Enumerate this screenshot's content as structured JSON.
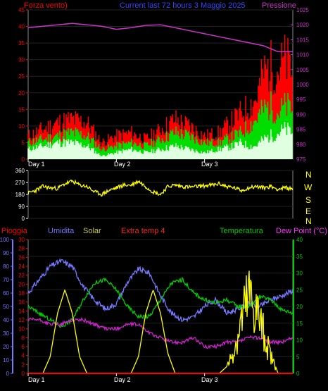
{
  "panels": {
    "top": {
      "label_left": "Forza vento)",
      "label_center": "Current last 72 hours 3 Maggio 2025",
      "label_right": "Pressione"
    },
    "direction": {
      "compass": [
        "N",
        "W",
        "S",
        "E",
        "N"
      ]
    },
    "bottom": {
      "label_pioggia": "Pioggia",
      "label_umidita": "Umidita",
      "label_solar": "Solar",
      "label_extra": "Extra temp 4",
      "label_temp": "Temperatura",
      "label_dew": "Dew Point (°C)"
    }
  },
  "day_labels": [
    "Day 1",
    "Day 2",
    "Day 3"
  ],
  "colors": {
    "wind_gust": "#ff0000",
    "wind_avg": "#00dd00",
    "wind_base": "#e0ffe0",
    "pressure": "#cc33cc",
    "direction": "#ffff00",
    "humidity": "#7777ff",
    "temperature": "#00cc00",
    "solar": "#ffff00",
    "extra_temp": "#cc22cc",
    "rain": "#ff0000",
    "axis_left": "#ff0000",
    "axis_right": "#00cc00"
  },
  "chart_data": [
    {
      "type": "area",
      "name": "wind",
      "x_range": [
        0,
        72
      ],
      "y_left": {
        "label": "Forza vento)",
        "ticks": [
          0,
          5,
          10,
          15,
          20,
          25,
          30,
          35,
          40,
          45
        ],
        "ylim": [
          0,
          45
        ]
      },
      "y_right": {
        "label": "Pressione",
        "ticks": [
          975,
          980,
          985,
          990,
          995,
          1000,
          1005,
          1010,
          1015,
          1020,
          1025
        ],
        "ylim": [
          975,
          1025
        ]
      },
      "series": [
        {
          "name": "gust",
          "x": [
            0,
            4,
            8,
            12,
            16,
            20,
            24,
            28,
            32,
            36,
            40,
            44,
            48,
            52,
            56,
            58,
            60,
            62,
            64,
            66,
            68,
            70,
            72
          ],
          "values": [
            7,
            9,
            11,
            12,
            11,
            5,
            7,
            8,
            6,
            9,
            12,
            10,
            7,
            8,
            12,
            14,
            16,
            18,
            26,
            28,
            27,
            30,
            26
          ]
        },
        {
          "name": "average",
          "x": [
            0,
            4,
            8,
            12,
            16,
            20,
            24,
            28,
            32,
            36,
            40,
            44,
            48,
            52,
            56,
            58,
            60,
            62,
            64,
            66,
            68,
            70,
            72
          ],
          "values": [
            5,
            6,
            7,
            8,
            7,
            3,
            4,
            5,
            4,
            6,
            8,
            7,
            5,
            5,
            7,
            8,
            10,
            12,
            15,
            16,
            14,
            16,
            15
          ]
        },
        {
          "name": "base",
          "x": [
            0,
            4,
            8,
            12,
            16,
            20,
            24,
            28,
            32,
            36,
            40,
            44,
            48,
            52,
            56,
            58,
            60,
            62,
            64,
            66,
            68,
            70,
            72
          ],
          "values": [
            3,
            4,
            5,
            5,
            4,
            1,
            2,
            3,
            2,
            3,
            4,
            3,
            2,
            3,
            4,
            5,
            4,
            4,
            6,
            7,
            8,
            9,
            8
          ]
        },
        {
          "name": "pressure",
          "axis": "right",
          "x": [
            0,
            4,
            8,
            12,
            16,
            20,
            24,
            28,
            32,
            36,
            40,
            44,
            48,
            52,
            56,
            60,
            64,
            68,
            72
          ],
          "values": [
            1019,
            1019.5,
            1020,
            1020.5,
            1020,
            1019.5,
            1018.5,
            1019,
            1019.8,
            1020,
            1019,
            1018,
            1017,
            1016,
            1015,
            1014,
            1013,
            1011,
            1011
          ]
        }
      ]
    },
    {
      "type": "line",
      "name": "wind-direction",
      "x_range": [
        0,
        72
      ],
      "y": {
        "ticks": [
          0,
          90,
          180,
          270,
          360
        ],
        "ylim": [
          0,
          360
        ]
      },
      "series": [
        {
          "name": "direction",
          "x": [
            0,
            2,
            4,
            6,
            8,
            10,
            12,
            14,
            16,
            18,
            20,
            22,
            24,
            26,
            28,
            30,
            32,
            34,
            36,
            38,
            40,
            42,
            44,
            46,
            48,
            50,
            52,
            54,
            56,
            58,
            60,
            62,
            64,
            66,
            68,
            70,
            72
          ],
          "values": [
            190,
            210,
            240,
            230,
            225,
            260,
            280,
            250,
            240,
            200,
            180,
            210,
            230,
            250,
            250,
            280,
            240,
            200,
            180,
            240,
            250,
            240,
            235,
            240,
            245,
            250,
            260,
            240,
            230,
            210,
            230,
            240,
            230,
            240,
            220,
            230,
            220
          ]
        }
      ]
    },
    {
      "type": "line",
      "name": "environment",
      "x_range": [
        0,
        72
      ],
      "y_left_outer": {
        "label": "Umidita",
        "ticks": [
          0,
          10,
          20,
          30,
          40,
          50,
          60,
          70,
          80,
          90,
          100
        ],
        "ylim": [
          0,
          100
        ]
      },
      "y_left_inner": {
        "label": "Pioggia",
        "ticks": [
          0,
          2,
          4,
          6,
          8,
          10,
          12,
          14,
          16,
          18,
          20,
          22,
          24,
          26,
          28,
          30
        ],
        "ylim": [
          0,
          30
        ]
      },
      "y_right": {
        "label": "Temperatura",
        "ticks": [
          0,
          5,
          10,
          15,
          20,
          25,
          30,
          35,
          40
        ],
        "ylim": [
          0,
          40
        ]
      },
      "series": [
        {
          "name": "humidity",
          "axis": "left_outer",
          "x": [
            0,
            3,
            6,
            9,
            12,
            15,
            18,
            21,
            24,
            27,
            30,
            33,
            36,
            39,
            42,
            45,
            48,
            51,
            54,
            57,
            60,
            63,
            66,
            69,
            72
          ],
          "values": [
            60,
            70,
            80,
            84,
            80,
            65,
            55,
            48,
            52,
            68,
            78,
            75,
            58,
            45,
            40,
            42,
            50,
            55,
            45,
            48,
            52,
            50,
            55,
            58,
            62
          ]
        },
        {
          "name": "temperature",
          "axis": "right",
          "x": [
            0,
            3,
            6,
            9,
            12,
            15,
            18,
            21,
            24,
            27,
            30,
            33,
            36,
            39,
            42,
            45,
            48,
            51,
            54,
            57,
            60,
            63,
            66,
            69,
            72
          ],
          "values": [
            20,
            18,
            16,
            14,
            16,
            22,
            27,
            28,
            25,
            20,
            17,
            17,
            22,
            27,
            28,
            24,
            22,
            21,
            22,
            20,
            20,
            23,
            22,
            19,
            18
          ]
        },
        {
          "name": "extra-temp",
          "axis": "left_inner",
          "x": [
            0,
            3,
            6,
            9,
            12,
            15,
            18,
            21,
            24,
            27,
            30,
            33,
            36,
            39,
            42,
            45,
            48,
            51,
            54,
            57,
            60,
            63,
            66,
            69,
            72
          ],
          "values": [
            12,
            12,
            11,
            11,
            12,
            12,
            11,
            10,
            10,
            11,
            11,
            9,
            8,
            7,
            7,
            8,
            6,
            6,
            7,
            7,
            8,
            8,
            7,
            7,
            8
          ]
        },
        {
          "name": "solar",
          "axis": "right",
          "x": [
            0,
            4,
            6,
            8,
            10,
            12,
            14,
            16,
            18,
            20,
            24,
            28,
            30,
            32,
            34,
            36,
            38,
            40,
            42,
            44,
            48,
            52,
            54,
            56,
            58,
            60,
            62,
            64,
            66,
            68,
            70,
            72
          ],
          "values": [
            0,
            0,
            5,
            18,
            25,
            18,
            5,
            0,
            0,
            0,
            0,
            0,
            5,
            18,
            25,
            18,
            6,
            0,
            0,
            0,
            0,
            0,
            2,
            8,
            18,
            26,
            22,
            14,
            6,
            0,
            0,
            0
          ]
        },
        {
          "name": "rain",
          "axis": "left_inner",
          "x": [
            0,
            72
          ],
          "values": [
            0,
            0
          ]
        }
      ]
    }
  ]
}
